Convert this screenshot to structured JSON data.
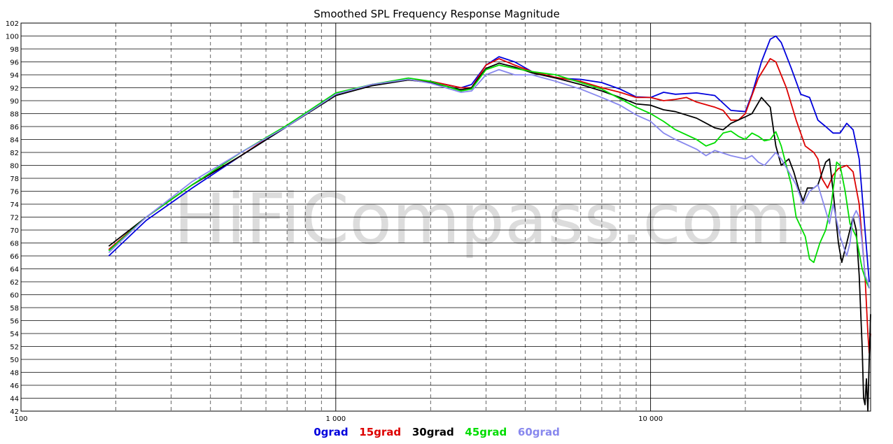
{
  "watermark": "HiFiCompass.com",
  "chart_data": {
    "type": "line",
    "title": "Smoothed SPL Frequency Response Magnitude",
    "xscale": "log",
    "xlim": [
      100,
      50000
    ],
    "ylim": [
      42,
      102
    ],
    "grid": true,
    "legend_position": "bottom",
    "x_ticks": [
      {
        "value": 100,
        "label": "100"
      },
      {
        "value": 1000,
        "label": "1 000"
      },
      {
        "value": 10000,
        "label": "10 000"
      }
    ],
    "y_ticks": [
      42,
      44,
      46,
      48,
      50,
      52,
      54,
      56,
      58,
      60,
      62,
      64,
      66,
      68,
      70,
      72,
      74,
      76,
      78,
      80,
      82,
      84,
      86,
      88,
      90,
      92,
      94,
      96,
      98,
      100,
      102
    ],
    "series": [
      {
        "name": "0grad",
        "color": "#0000dd",
        "points": [
          [
            190,
            66
          ],
          [
            250,
            71.5
          ],
          [
            350,
            76.5
          ],
          [
            500,
            81.5
          ],
          [
            700,
            86
          ],
          [
            1000,
            91
          ],
          [
            1300,
            92.5
          ],
          [
            1700,
            93.2
          ],
          [
            2000,
            93
          ],
          [
            2500,
            92
          ],
          [
            2700,
            92.5
          ],
          [
            3000,
            95.5
          ],
          [
            3300,
            96.8
          ],
          [
            3700,
            96
          ],
          [
            4200,
            94.5
          ],
          [
            5000,
            93.5
          ],
          [
            6000,
            93.3
          ],
          [
            7000,
            92.8
          ],
          [
            8000,
            91.8
          ],
          [
            9000,
            90.6
          ],
          [
            10000,
            90.5
          ],
          [
            11000,
            91.3
          ],
          [
            12000,
            91
          ],
          [
            14000,
            91.2
          ],
          [
            16000,
            90.8
          ],
          [
            18000,
            88.5
          ],
          [
            20000,
            88.3
          ],
          [
            21000,
            91
          ],
          [
            22500,
            96
          ],
          [
            24000,
            99.5
          ],
          [
            25000,
            100
          ],
          [
            26000,
            99
          ],
          [
            28000,
            95
          ],
          [
            30000,
            91
          ],
          [
            32000,
            90.5
          ],
          [
            34000,
            87
          ],
          [
            36000,
            86
          ],
          [
            38000,
            85
          ],
          [
            40000,
            85
          ],
          [
            42000,
            86.5
          ],
          [
            44000,
            85.5
          ],
          [
            46000,
            81
          ],
          [
            48000,
            70
          ],
          [
            49500,
            62
          ]
        ]
      },
      {
        "name": "15grad",
        "color": "#dd0000",
        "points": [
          [
            190,
            67
          ],
          [
            250,
            72
          ],
          [
            350,
            77
          ],
          [
            500,
            81.5
          ],
          [
            700,
            86.2
          ],
          [
            1000,
            91
          ],
          [
            1300,
            92.5
          ],
          [
            1700,
            93.2
          ],
          [
            2000,
            93
          ],
          [
            2500,
            92
          ],
          [
            2700,
            92
          ],
          [
            3000,
            95.5
          ],
          [
            3300,
            96.5
          ],
          [
            3700,
            95.5
          ],
          [
            4200,
            94.5
          ],
          [
            5000,
            93.6
          ],
          [
            6000,
            93
          ],
          [
            7000,
            92
          ],
          [
            8000,
            91.3
          ],
          [
            9000,
            90.5
          ],
          [
            10000,
            90.5
          ],
          [
            11000,
            90
          ],
          [
            12000,
            90.2
          ],
          [
            13000,
            90.5
          ],
          [
            14000,
            89.8
          ],
          [
            16000,
            89
          ],
          [
            17000,
            88.5
          ],
          [
            18000,
            87
          ],
          [
            19000,
            87
          ],
          [
            20000,
            88
          ],
          [
            22000,
            93.5
          ],
          [
            24000,
            96.5
          ],
          [
            25000,
            96
          ],
          [
            27000,
            92
          ],
          [
            29000,
            87
          ],
          [
            31000,
            83
          ],
          [
            33000,
            82
          ],
          [
            34000,
            81
          ],
          [
            35000,
            78
          ],
          [
            36500,
            76.5
          ],
          [
            38000,
            78.5
          ],
          [
            39500,
            79.5
          ],
          [
            42000,
            80
          ],
          [
            44000,
            79
          ],
          [
            46000,
            74
          ],
          [
            48000,
            63
          ],
          [
            49000,
            54
          ],
          [
            49500,
            51
          ],
          [
            50000,
            54
          ]
        ]
      },
      {
        "name": "30grad",
        "color": "#000000",
        "points": [
          [
            190,
            67.5
          ],
          [
            250,
            72
          ],
          [
            350,
            77
          ],
          [
            500,
            81.5
          ],
          [
            700,
            86
          ],
          [
            1000,
            90.8
          ],
          [
            1300,
            92.3
          ],
          [
            1700,
            93.2
          ],
          [
            2000,
            92.8
          ],
          [
            2500,
            91.7
          ],
          [
            2700,
            92
          ],
          [
            3000,
            95
          ],
          [
            3300,
            95.8
          ],
          [
            3700,
            95.2
          ],
          [
            4200,
            94.3
          ],
          [
            5000,
            93.5
          ],
          [
            6000,
            92.5
          ],
          [
            7000,
            91.5
          ],
          [
            8000,
            90.5
          ],
          [
            9000,
            89.5
          ],
          [
            10000,
            89.3
          ],
          [
            11000,
            88.6
          ],
          [
            12000,
            88.3
          ],
          [
            14000,
            87.3
          ],
          [
            16000,
            85.8
          ],
          [
            17000,
            85.5
          ],
          [
            18000,
            86.5
          ],
          [
            20000,
            87.5
          ],
          [
            21000,
            88
          ],
          [
            22500,
            90.5
          ],
          [
            24000,
            89
          ],
          [
            25000,
            83
          ],
          [
            26000,
            80
          ],
          [
            27500,
            81
          ],
          [
            28500,
            79
          ],
          [
            29500,
            76.5
          ],
          [
            30500,
            74.5
          ],
          [
            31500,
            76.5
          ],
          [
            33000,
            76.5
          ],
          [
            34000,
            77
          ],
          [
            36000,
            80.5
          ],
          [
            37000,
            81
          ],
          [
            38000,
            76
          ],
          [
            39500,
            68
          ],
          [
            40500,
            65
          ],
          [
            42000,
            68
          ],
          [
            44000,
            72
          ],
          [
            45000,
            70
          ],
          [
            46000,
            63
          ],
          [
            47000,
            52
          ],
          [
            47500,
            44
          ],
          [
            48000,
            43
          ],
          [
            48500,
            47
          ],
          [
            49000,
            42
          ],
          [
            49500,
            50
          ],
          [
            50000,
            57
          ]
        ]
      },
      {
        "name": "45grad",
        "color": "#00dd00",
        "points": [
          [
            190,
            66.8
          ],
          [
            250,
            72
          ],
          [
            350,
            77
          ],
          [
            500,
            82
          ],
          [
            700,
            86.2
          ],
          [
            1000,
            91.2
          ],
          [
            1300,
            92.5
          ],
          [
            1700,
            93.5
          ],
          [
            2000,
            93
          ],
          [
            2500,
            91.5
          ],
          [
            2700,
            91.8
          ],
          [
            3000,
            94.8
          ],
          [
            3300,
            95.5
          ],
          [
            3700,
            95
          ],
          [
            4200,
            94.5
          ],
          [
            5000,
            94
          ],
          [
            6000,
            92.8
          ],
          [
            7000,
            91.8
          ],
          [
            8000,
            90.3
          ],
          [
            9000,
            89
          ],
          [
            10000,
            88
          ],
          [
            11000,
            86.8
          ],
          [
            12000,
            85.5
          ],
          [
            14000,
            84
          ],
          [
            15000,
            83
          ],
          [
            16000,
            83.5
          ],
          [
            17000,
            85
          ],
          [
            18000,
            85.3
          ],
          [
            19000,
            84.5
          ],
          [
            20000,
            84
          ],
          [
            21000,
            85
          ],
          [
            22000,
            84.5
          ],
          [
            23000,
            83.8
          ],
          [
            24000,
            84
          ],
          [
            25000,
            85.2
          ],
          [
            26000,
            83
          ],
          [
            28000,
            77
          ],
          [
            29000,
            72
          ],
          [
            31000,
            69
          ],
          [
            32000,
            65.5
          ],
          [
            33000,
            65
          ],
          [
            34500,
            68
          ],
          [
            36000,
            70
          ],
          [
            37500,
            74
          ],
          [
            39000,
            80.5
          ],
          [
            40000,
            80
          ],
          [
            41500,
            76
          ],
          [
            43000,
            71
          ],
          [
            45000,
            69
          ],
          [
            47000,
            64
          ],
          [
            48500,
            62
          ],
          [
            49500,
            61
          ]
        ]
      },
      {
        "name": "60grad",
        "color": "#8888ee",
        "points": [
          [
            190,
            66.5
          ],
          [
            250,
            72
          ],
          [
            350,
            77.5
          ],
          [
            500,
            82
          ],
          [
            700,
            86
          ],
          [
            1000,
            91
          ],
          [
            1300,
            92.5
          ],
          [
            1700,
            93.3
          ],
          [
            2000,
            92.7
          ],
          [
            2500,
            91.3
          ],
          [
            2700,
            91.5
          ],
          [
            3000,
            94
          ],
          [
            3300,
            94.8
          ],
          [
            3700,
            94
          ],
          [
            4200,
            94
          ],
          [
            5000,
            93
          ],
          [
            6000,
            91.8
          ],
          [
            7000,
            90.5
          ],
          [
            8000,
            89.3
          ],
          [
            9000,
            87.8
          ],
          [
            10000,
            86.8
          ],
          [
            11000,
            85
          ],
          [
            12000,
            84
          ],
          [
            14000,
            82.5
          ],
          [
            15000,
            81.5
          ],
          [
            16000,
            82.3
          ],
          [
            18000,
            81.5
          ],
          [
            20000,
            81
          ],
          [
            21000,
            81.5
          ],
          [
            22000,
            80.5
          ],
          [
            23000,
            80
          ],
          [
            24000,
            81
          ],
          [
            25000,
            82
          ],
          [
            26000,
            81
          ],
          [
            27500,
            79
          ],
          [
            29000,
            77
          ],
          [
            30500,
            74
          ],
          [
            32000,
            76
          ],
          [
            34000,
            77
          ],
          [
            36000,
            73
          ],
          [
            37000,
            71
          ],
          [
            38000,
            74
          ],
          [
            40000,
            69
          ],
          [
            42000,
            66
          ],
          [
            43000,
            68
          ],
          [
            44000,
            72
          ],
          [
            45000,
            73
          ],
          [
            46000,
            72
          ],
          [
            47000,
            68
          ],
          [
            48000,
            63
          ],
          [
            49000,
            62
          ],
          [
            49500,
            61
          ]
        ]
      }
    ]
  }
}
